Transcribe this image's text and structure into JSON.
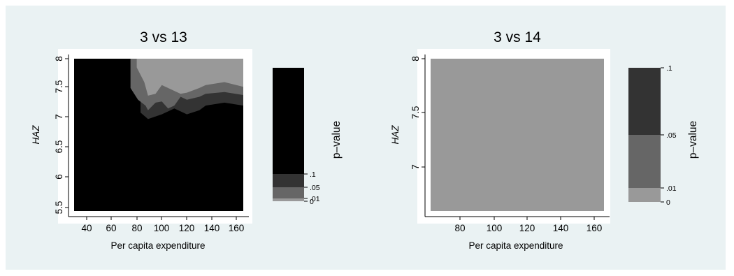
{
  "chart_data": [
    {
      "type": "heatmap",
      "title": "3 vs 13",
      "xlabel": "Per capita expenditure",
      "ylabel": "HAZ",
      "xlim": [
        30,
        165
      ],
      "ylim": [
        5.4,
        8.0
      ],
      "x_ticks": [
        "40",
        "60",
        "80",
        "100",
        "120",
        "140",
        "160"
      ],
      "y_ticks": [
        "5.5",
        "6",
        "6.5",
        "7",
        "7.5",
        "8"
      ],
      "colorbar": {
        "label": "p–value",
        "ticks": [
          "0",
          ".01",
          ".05",
          ".1"
        ],
        "bands": [
          {
            "from": 0,
            "to": 0.01,
            "color": "#999999"
          },
          {
            "from": 0.01,
            "to": 0.05,
            "color": "#666666"
          },
          {
            "from": 0.05,
            "to": 0.1,
            "color": "#333333"
          },
          {
            "from": 0.1,
            "to": 1,
            "color": "#000000"
          }
        ]
      },
      "background_color": "#000000",
      "contours": [
        {
          "level": "0.05–0.1",
          "color": "#333333",
          "boundary": [
            [
              83,
              7.08
            ],
            [
              89,
              6.97
            ],
            [
              100,
              7.05
            ],
            [
              110,
              7.15
            ],
            [
              120,
              7.05
            ],
            [
              130,
              7.12
            ],
            [
              135,
              7.2
            ],
            [
              150,
              7.25
            ],
            [
              165,
              7.2
            ]
          ]
        },
        {
          "level": "0.01–0.05",
          "color": "#666666",
          "boundary": [
            [
              75,
              8.0
            ],
            [
              75,
              7.5
            ],
            [
              81,
              7.3
            ],
            [
              87,
              7.2
            ],
            [
              89,
              7.12
            ],
            [
              95,
              7.25
            ],
            [
              100,
              7.27
            ],
            [
              105,
              7.15
            ],
            [
              110,
              7.2
            ],
            [
              115,
              7.35
            ],
            [
              120,
              7.3
            ],
            [
              130,
              7.35
            ],
            [
              135,
              7.4
            ],
            [
              150,
              7.43
            ],
            [
              165,
              7.38
            ]
          ]
        },
        {
          "level": "0–0.01",
          "color": "#999999",
          "boundary": [
            [
              80,
              8.0
            ],
            [
              80,
              7.85
            ],
            [
              86,
              7.6
            ],
            [
              89,
              7.37
            ],
            [
              95,
              7.4
            ],
            [
              100,
              7.55
            ],
            [
              110,
              7.45
            ],
            [
              115,
              7.4
            ],
            [
              120,
              7.42
            ],
            [
              130,
              7.5
            ],
            [
              135,
              7.55
            ],
            [
              150,
              7.6
            ],
            [
              165,
              7.52
            ]
          ]
        }
      ]
    },
    {
      "type": "heatmap",
      "title": "3 vs 14",
      "xlabel": "Per capita expenditure",
      "ylabel": "HAZ",
      "xlim": [
        63,
        165
      ],
      "ylim": [
        6.6,
        8.0
      ],
      "x_ticks": [
        "80",
        "100",
        "120",
        "140",
        "160"
      ],
      "y_ticks": [
        "7",
        "7.5",
        "8"
      ],
      "colorbar": {
        "label": "p–value",
        "ticks": [
          "0",
          ".01",
          ".05",
          ".1"
        ],
        "bands": [
          {
            "from": 0,
            "to": 0.01,
            "color": "#999999"
          },
          {
            "from": 0.01,
            "to": 0.05,
            "color": "#666666"
          },
          {
            "from": 0.05,
            "to": 0.1,
            "color": "#333333"
          }
        ]
      },
      "background_color": "#999999",
      "contours": []
    }
  ]
}
